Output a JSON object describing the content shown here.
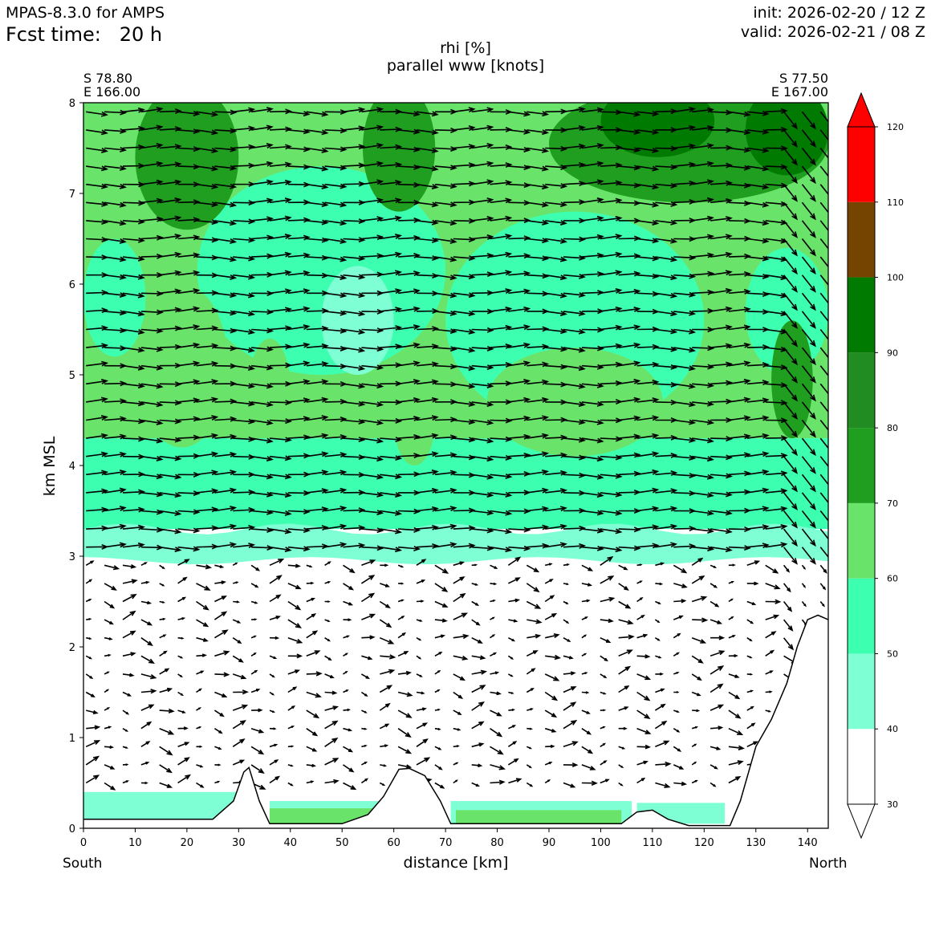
{
  "header": {
    "model": "MPAS-8.3.0 for AMPS",
    "fcst_time": "Fcst time:   20 h",
    "init": "init: 2026-02-20 / 12 Z",
    "valid": "valid: 2026-02-21 / 08 Z"
  },
  "chart_data": {
    "type": "heatmap",
    "title": "rhi [%]",
    "subtitle": "parallel www [knots]",
    "xlabel": "distance [km]",
    "ylabel": "km MSL",
    "xlim": [
      0,
      144
    ],
    "ylim": [
      0,
      8
    ],
    "x_ticks": [
      "0",
      "10",
      "20",
      "30",
      "40",
      "50",
      "60",
      "70",
      "80",
      "90",
      "100",
      "110",
      "120",
      "130",
      "140"
    ],
    "y_ticks": [
      "0",
      "1",
      "2",
      "3",
      "4",
      "5",
      "6",
      "7",
      "8"
    ],
    "left_end": {
      "lat": "S 78.80",
      "lon": "E 166.00",
      "label": "South"
    },
    "right_end": {
      "lat": "S 77.50",
      "lon": "E 167.00",
      "label": "North"
    },
    "colorbar": {
      "ticks": [
        "30",
        "40",
        "50",
        "60",
        "70",
        "80",
        "90",
        "100",
        "110",
        "120"
      ],
      "levels": [
        {
          "from": 30,
          "to": 40,
          "color": "#ffffff"
        },
        {
          "from": 40,
          "to": 50,
          "color": "#7fffd4"
        },
        {
          "from": 50,
          "to": 60,
          "color": "#3dffb0"
        },
        {
          "from": 60,
          "to": 70,
          "color": "#6ae36a"
        },
        {
          "from": 70,
          "to": 80,
          "color": "#1f9e1f"
        },
        {
          "from": 80,
          "to": 90,
          "color": "#218c21"
        },
        {
          "from": 90,
          "to": 100,
          "color": "#007a00"
        },
        {
          "from": 100,
          "to": 110,
          "color": "#744400"
        },
        {
          "from": 110,
          "to": 120,
          "color": "#ff0000"
        }
      ]
    },
    "terrain_km": [
      [
        0,
        0.1
      ],
      [
        25,
        0.1
      ],
      [
        29,
        0.3
      ],
      [
        31,
        0.62
      ],
      [
        32,
        0.67
      ],
      [
        34,
        0.3
      ],
      [
        36,
        0.05
      ],
      [
        50,
        0.05
      ],
      [
        55,
        0.15
      ],
      [
        58,
        0.35
      ],
      [
        61,
        0.65
      ],
      [
        63,
        0.66
      ],
      [
        66,
        0.58
      ],
      [
        69,
        0.3
      ],
      [
        71,
        0.05
      ],
      [
        104,
        0.05
      ],
      [
        107,
        0.18
      ],
      [
        110,
        0.2
      ],
      [
        113,
        0.1
      ],
      [
        117,
        0.03
      ],
      [
        125,
        0.03
      ],
      [
        127,
        0.3
      ],
      [
        130,
        0.9
      ],
      [
        133,
        1.2
      ],
      [
        136,
        1.6
      ],
      [
        138,
        2.0
      ],
      [
        140,
        2.3
      ],
      [
        142,
        2.35
      ],
      [
        144,
        2.3
      ]
    ],
    "shaded_regions": [
      {
        "level": "40-50",
        "desc": "band near 3 km",
        "x": [
          0,
          144
        ],
        "y": [
          2.95,
          3.35
        ]
      },
      {
        "level": "50-60",
        "desc": "mid-level moist layer",
        "x": [
          0,
          144
        ],
        "y": [
          3.3,
          4.3
        ]
      },
      {
        "level": "60-70",
        "desc": "upper layer",
        "x": [
          0,
          144
        ],
        "y": [
          4.3,
          8
        ]
      },
      {
        "level": "70-80",
        "desc": "cloud cores near top",
        "x": [
          10,
          30
        ],
        "y": [
          6.6,
          8
        ]
      },
      {
        "level": "90-100",
        "desc": "upper right",
        "x": [
          95,
          144
        ],
        "y": [
          7.2,
          8
        ]
      }
    ],
    "wind_note": "westerly flow ~ 10-20 knots aloft, weak and variable near surface"
  }
}
